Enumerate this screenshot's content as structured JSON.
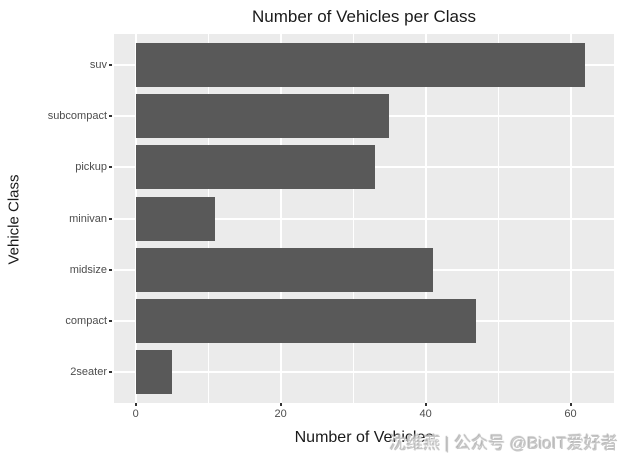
{
  "watermark": {
    "text": "沈维燕 | 公众号 @BioIT爱好者"
  },
  "chart_data": {
    "type": "bar",
    "orientation": "horizontal",
    "title": "Number of Vehicles per Class",
    "xlabel": "Number of Vehicles",
    "ylabel": "Vehicle Class",
    "categories": [
      "suv",
      "subcompact",
      "pickup",
      "minivan",
      "midsize",
      "compact",
      "2seater"
    ],
    "values": [
      62,
      35,
      33,
      11,
      41,
      47,
      5
    ],
    "x_major_ticks": [
      0,
      20,
      40,
      60
    ],
    "x_minor_gridlines": [
      10,
      30,
      50
    ],
    "xlim": [
      -3,
      66
    ],
    "grid": "on",
    "legend": "none",
    "colors": {
      "bar": "#595959",
      "panel_background": "#EBEBEB",
      "gridline": "#FFFFFF",
      "tick_label": "#4D4D4D",
      "tick_mark": "#333333",
      "axis_title": "#1a1a1a",
      "title": "#1a1a1a",
      "watermark": "#C6C6C6"
    }
  }
}
